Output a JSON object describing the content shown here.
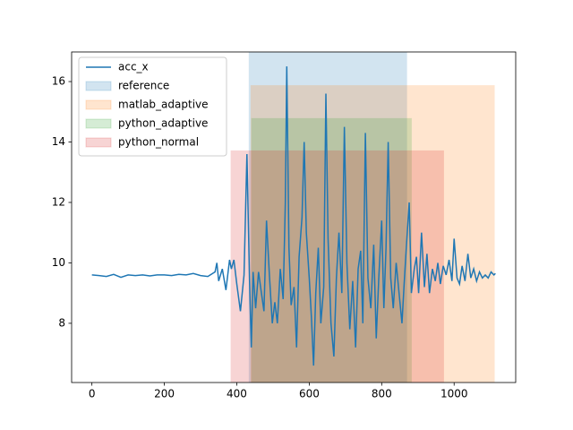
{
  "chart_data": {
    "type": "line",
    "x": [
      0,
      20,
      40,
      60,
      80,
      100,
      120,
      140,
      160,
      180,
      200,
      220,
      240,
      260,
      280,
      300,
      320,
      340,
      345,
      350,
      360,
      370,
      380,
      385,
      392,
      400,
      410,
      420,
      428,
      435,
      440,
      445,
      452,
      460,
      468,
      475,
      482,
      490,
      498,
      505,
      512,
      520,
      528,
      534,
      538,
      544,
      550,
      558,
      565,
      572,
      580,
      586,
      592,
      600,
      606,
      612,
      618,
      625,
      632,
      640,
      646,
      652,
      660,
      668,
      675,
      682,
      690,
      697,
      704,
      712,
      720,
      728,
      735,
      742,
      748,
      755,
      762,
      770,
      778,
      785,
      792,
      800,
      806,
      812,
      818,
      825,
      832,
      840,
      848,
      856,
      862,
      868,
      876,
      882,
      890,
      896,
      902,
      910,
      918,
      925,
      932,
      940,
      948,
      955,
      962,
      970,
      978,
      986,
      994,
      1000,
      1008,
      1015,
      1022,
      1030,
      1038,
      1046,
      1054,
      1062,
      1070,
      1078,
      1086,
      1094,
      1102,
      1110,
      1114
    ],
    "series": [
      {
        "name": "acc_x",
        "color": "#1f77b4",
        "values": [
          9.6,
          9.58,
          9.55,
          9.62,
          9.52,
          9.6,
          9.58,
          9.6,
          9.57,
          9.6,
          9.6,
          9.58,
          9.62,
          9.6,
          9.65,
          9.58,
          9.55,
          9.7,
          10.0,
          9.4,
          9.8,
          9.1,
          10.1,
          9.8,
          10.1,
          9.3,
          8.4,
          9.6,
          13.6,
          9.5,
          7.2,
          9.7,
          8.5,
          9.7,
          9.0,
          8.4,
          11.4,
          9.6,
          8.0,
          8.7,
          8.0,
          9.8,
          8.8,
          12.0,
          16.5,
          10.5,
          8.6,
          9.2,
          7.2,
          10.2,
          11.5,
          14.0,
          11.0,
          9.5,
          8.2,
          6.6,
          9.0,
          10.5,
          8.0,
          9.2,
          15.6,
          10.8,
          8.0,
          6.9,
          9.5,
          11.0,
          9.0,
          14.5,
          10.0,
          7.8,
          9.4,
          7.2,
          9.8,
          10.4,
          8.0,
          14.3,
          9.5,
          8.5,
          10.6,
          7.5,
          9.5,
          11.4,
          8.5,
          10.5,
          14.0,
          9.5,
          8.5,
          10.0,
          9.0,
          8.0,
          9.3,
          10.5,
          12.0,
          9.0,
          9.8,
          10.2,
          9.0,
          11.0,
          9.2,
          10.3,
          9.0,
          9.8,
          9.4,
          10.0,
          9.3,
          9.9,
          9.6,
          10.1,
          9.4,
          10.8,
          9.5,
          9.3,
          9.9,
          9.4,
          10.3,
          9.5,
          9.8,
          9.4,
          9.7,
          9.5,
          9.6,
          9.5,
          9.7,
          9.6,
          9.65
        ]
      }
    ],
    "spans": [
      {
        "name": "reference",
        "color": "#1f77b4",
        "x0": 433,
        "x1": 870,
        "y0": 6.04,
        "y1": 16.98
      },
      {
        "name": "matlab_adaptive",
        "color": "#ff7f0e",
        "x0": 438,
        "x1": 1112,
        "y0": 6.04,
        "y1": 15.88
      },
      {
        "name": "python_adaptive",
        "color": "#2ca02c",
        "x0": 440,
        "x1": 883,
        "y0": 6.04,
        "y1": 14.79
      },
      {
        "name": "python_normal",
        "color": "#d62728",
        "x0": 383,
        "x1": 972,
        "y0": 6.04,
        "y1": 13.72
      }
    ],
    "xlim": [
      -56,
      1170
    ],
    "ylim": [
      6.04,
      16.98
    ],
    "xticks": [
      0,
      200,
      400,
      600,
      800,
      1000
    ],
    "yticks": [
      8,
      10,
      12,
      14,
      16
    ],
    "legend": "upper left"
  }
}
